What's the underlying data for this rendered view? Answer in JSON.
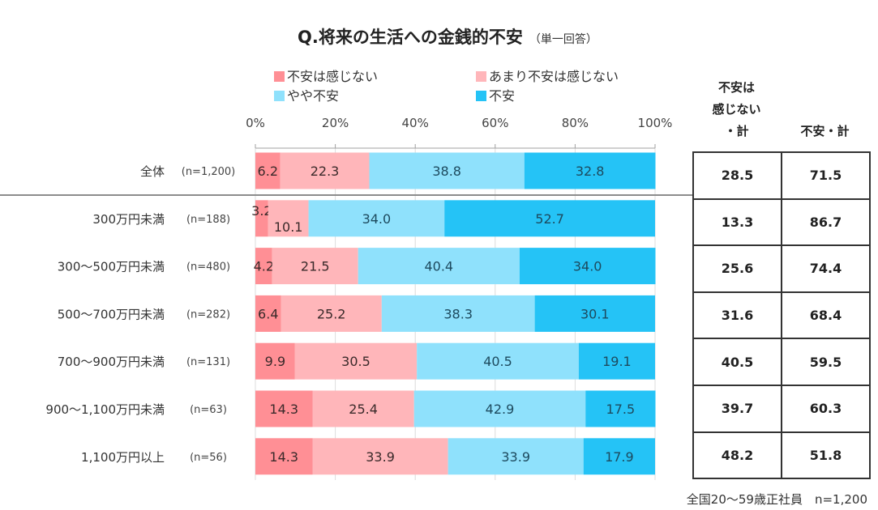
{
  "title": "Q.将来の生活への金銭的不安",
  "title_note": "（単一回答）",
  "chart_data": {
    "type": "bar",
    "orientation": "horizontal",
    "stacked": "100%",
    "title": "Q.将来の生活への金銭的不安（単一回答）",
    "xlabel": "",
    "ylabel": "",
    "xlim": [
      0,
      100
    ],
    "xticks": [
      "0%",
      "20%",
      "40%",
      "60%",
      "80%",
      "100%"
    ],
    "grid": true,
    "legend_position": "top",
    "categories": [
      "全体",
      "300万円未満",
      "300～500万円未満",
      "500～700万円未満",
      "700～900万円未満",
      "900～1,100万円未満",
      "1,100万円以上"
    ],
    "sample_sizes": [
      "(n=1,200)",
      "(n=188)",
      "(n=480)",
      "(n=282)",
      "(n=131)",
      "(n=63)",
      "(n=56)"
    ],
    "series": [
      {
        "name": "不安は感じない",
        "color": "#ff8f95",
        "values": [
          6.2,
          3.2,
          4.2,
          6.4,
          9.9,
          14.3,
          14.3
        ]
      },
      {
        "name": "あまり不安は感じない",
        "color": "#ffb6ba",
        "values": [
          22.3,
          10.1,
          21.5,
          25.2,
          30.5,
          25.4,
          33.9
        ]
      },
      {
        "name": "やや不安",
        "color": "#8fe1fc",
        "values": [
          38.8,
          34.0,
          40.4,
          38.3,
          40.5,
          42.9,
          33.9
        ]
      },
      {
        "name": "不安",
        "color": "#25c3f6",
        "values": [
          32.8,
          52.7,
          34.0,
          30.1,
          19.1,
          17.5,
          17.9
        ]
      }
    ]
  },
  "summary_table": {
    "header_no_anxiety": [
      "不安は",
      "感じない",
      "・計"
    ],
    "header_anxiety": "不安・計",
    "rows": [
      {
        "no_anxiety_total": 28.5,
        "anxiety_total": 71.5
      },
      {
        "no_anxiety_total": 13.3,
        "anxiety_total": 86.7
      },
      {
        "no_anxiety_total": 25.6,
        "anxiety_total": 74.4
      },
      {
        "no_anxiety_total": 31.6,
        "anxiety_total": 68.4
      },
      {
        "no_anxiety_total": 40.5,
        "anxiety_total": 59.5
      },
      {
        "no_anxiety_total": 39.7,
        "anxiety_total": 60.3
      },
      {
        "no_anxiety_total": 48.2,
        "anxiety_total": 51.8
      }
    ]
  },
  "footer": "全国20～59歳正社員　n=1,200"
}
